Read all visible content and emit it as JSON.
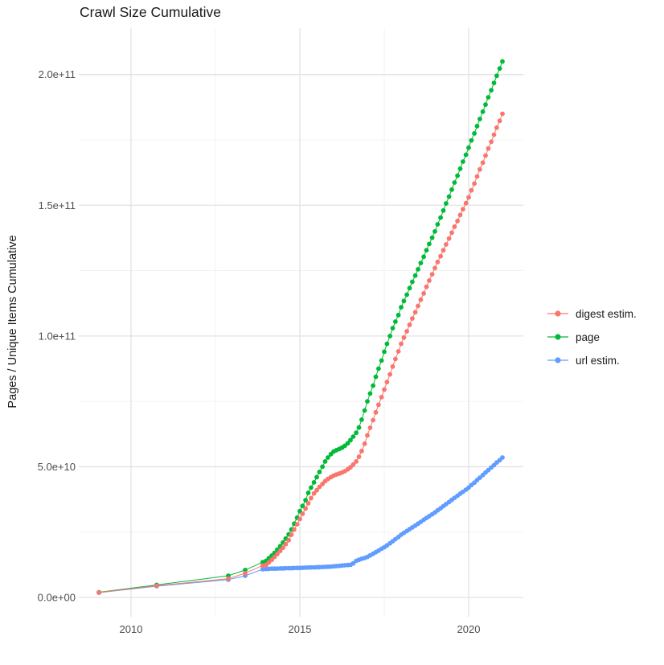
{
  "chart_data": {
    "type": "line",
    "title": "Crawl Size Cumulative",
    "xlabel": "",
    "ylabel": "Pages / Unique Items Cumulative",
    "units": "values_e9 are in units of 1e9 (billions), as read from the y axis",
    "grid": true,
    "legend_position": "right",
    "x_years": [
      2009.05,
      2010.76,
      2012.88,
      2013.38,
      2013.9,
      2014.0,
      2014.08,
      2014.17,
      2014.25,
      2014.33,
      2014.42,
      2014.5,
      2014.58,
      2014.67,
      2014.75,
      2014.83,
      2014.92,
      2015.0,
      2015.08,
      2015.17,
      2015.25,
      2015.33,
      2015.42,
      2015.5,
      2015.58,
      2015.67,
      2015.75,
      2015.83,
      2015.92,
      2016.0,
      2016.08,
      2016.17,
      2016.25,
      2016.33,
      2016.42,
      2016.5,
      2016.58,
      2016.67,
      2016.75,
      2016.83,
      2016.92,
      2017.0,
      2017.08,
      2017.17,
      2017.25,
      2017.33,
      2017.42,
      2017.5,
      2017.58,
      2017.67,
      2017.75,
      2017.83,
      2017.92,
      2018.0,
      2018.08,
      2018.17,
      2018.25,
      2018.33,
      2018.42,
      2018.5,
      2018.58,
      2018.67,
      2018.75,
      2018.83,
      2018.92,
      2019.0,
      2019.08,
      2019.17,
      2019.25,
      2019.33,
      2019.42,
      2019.5,
      2019.58,
      2019.67,
      2019.75,
      2019.83,
      2019.92,
      2020.0,
      2020.08,
      2020.17,
      2020.25,
      2020.33,
      2020.42,
      2020.5,
      2020.58,
      2020.67,
      2020.75,
      2020.83,
      2020.92,
      2021.0
    ],
    "series": [
      {
        "name": "digest estim.",
        "color": "#F8766D",
        "values_e9": [
          1.9,
          4.5,
          7.2,
          9.3,
          12.2,
          12.5,
          13.4,
          14.4,
          15.5,
          16.6,
          17.8,
          19.0,
          20.4,
          21.9,
          24.0,
          26.0,
          28.0,
          30.0,
          32.0,
          34.0,
          36.0,
          38.0,
          39.8,
          41.0,
          42.3,
          43.4,
          44.5,
          45.3,
          46.0,
          46.6,
          47.0,
          47.4,
          47.8,
          48.3,
          49.0,
          49.8,
          50.8,
          52.0,
          53.8,
          56.0,
          58.8,
          62.0,
          64.9,
          67.8,
          70.8,
          73.7,
          76.6,
          79.5,
          82.4,
          85.3,
          88.3,
          91.2,
          94.1,
          97.0,
          99.4,
          101.8,
          104.3,
          106.7,
          109.1,
          111.5,
          113.9,
          116.3,
          118.8,
          121.2,
          123.6,
          126.0,
          128.3,
          130.5,
          132.8,
          135.0,
          137.3,
          139.5,
          141.8,
          144.0,
          146.3,
          148.5,
          150.8,
          153.0,
          155.7,
          158.3,
          161.0,
          163.7,
          166.3,
          169.0,
          171.7,
          174.3,
          177.0,
          179.7,
          182.3,
          185.0
        ]
      },
      {
        "name": "page",
        "color": "#00BA38",
        "values_e9": [
          2.0,
          4.8,
          8.3,
          10.5,
          13.5,
          14.0,
          15.0,
          16.0,
          17.0,
          18.3,
          19.6,
          21.0,
          22.5,
          24.1,
          26.0,
          28.2,
          30.5,
          33.0,
          35.0,
          37.2,
          40.0,
          42.0,
          44.0,
          46.0,
          48.0,
          50.0,
          52.0,
          53.5,
          54.8,
          55.8,
          56.3,
          56.8,
          57.3,
          58.0,
          59.0,
          60.2,
          61.5,
          63.0,
          65.0,
          68.0,
          71.5,
          75.0,
          78.0,
          81.0,
          84.4,
          87.5,
          90.6,
          94.0,
          97.0,
          100.0,
          103.0,
          105.5,
          108.0,
          111.0,
          113.4,
          115.8,
          118.3,
          120.7,
          123.1,
          125.5,
          127.9,
          130.3,
          132.8,
          135.2,
          137.6,
          140.0,
          142.7,
          145.3,
          148.0,
          150.7,
          153.3,
          156.0,
          158.7,
          161.3,
          164.0,
          166.7,
          169.3,
          172.0,
          174.8,
          177.5,
          180.3,
          183.0,
          185.8,
          188.5,
          191.3,
          194.0,
          196.8,
          199.5,
          202.3,
          205.0
        ]
      },
      {
        "name": "url estim.",
        "color": "#619CFF",
        "values_e9": [
          1.8,
          4.3,
          6.8,
          8.3,
          10.8,
          10.9,
          10.95,
          11.0,
          11.0,
          11.05,
          11.1,
          11.1,
          11.15,
          11.2,
          11.2,
          11.25,
          11.3,
          11.3,
          11.35,
          11.4,
          11.45,
          11.5,
          11.5,
          11.55,
          11.6,
          11.65,
          11.7,
          11.75,
          11.8,
          11.9,
          12.0,
          12.1,
          12.2,
          12.3,
          12.4,
          12.5,
          13.0,
          14.0,
          14.4,
          14.8,
          15.1,
          15.5,
          16.1,
          16.7,
          17.3,
          17.9,
          18.6,
          19.2,
          19.9,
          20.7,
          21.5,
          22.3,
          23.1,
          24.0,
          24.7,
          25.4,
          26.1,
          26.8,
          27.5,
          28.2,
          28.9,
          29.7,
          30.4,
          31.1,
          31.8,
          32.5,
          33.3,
          34.1,
          34.9,
          35.7,
          36.5,
          37.3,
          38.1,
          38.9,
          39.7,
          40.4,
          41.2,
          42.0,
          43.0,
          43.9,
          44.9,
          45.8,
          46.8,
          47.8,
          48.7,
          49.7,
          50.6,
          51.6,
          52.5,
          53.5
        ]
      }
    ],
    "x_axis": {
      "major_ticks": [
        2010,
        2015,
        2020
      ],
      "tick_labels": [
        "2010",
        "2015",
        "2020"
      ],
      "minor_ticks": [
        2012.5,
        2017.5
      ],
      "range": [
        2008.45,
        2021.6
      ]
    },
    "y_axis": {
      "major_ticks_e9": [
        0,
        50,
        100,
        150,
        200
      ],
      "tick_labels": [
        "0.0e+00",
        "5.0e+10",
        "1.0e+11",
        "1.5e+11",
        "2.0e+11"
      ],
      "minor_ticks_e9": [
        25,
        75,
        125,
        175
      ],
      "range_e9": [
        -7.4,
        217.7
      ]
    }
  },
  "colors": {
    "background": "#FFFFFF",
    "grid_major": "#E2E2E2",
    "grid_minor": "#F0F0F0",
    "tick_text": "#4D4D4D",
    "text": "#1A1A1A"
  }
}
